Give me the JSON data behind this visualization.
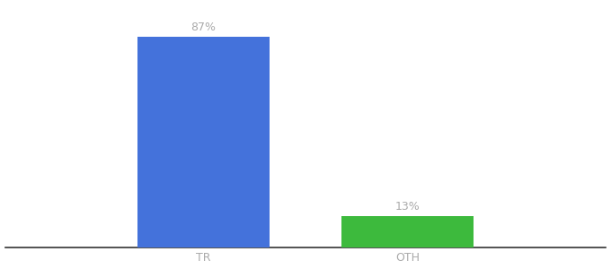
{
  "categories": [
    "TR",
    "OTH"
  ],
  "values": [
    87,
    13
  ],
  "bar_colors": [
    "#4472db",
    "#3dba3d"
  ],
  "labels": [
    "87%",
    "13%"
  ],
  "background_color": "#ffffff",
  "ylim": [
    0,
    100
  ],
  "bar_width": 0.22,
  "figsize": [
    6.8,
    3.0
  ],
  "dpi": 100,
  "label_fontsize": 9,
  "tick_fontsize": 9,
  "label_color": "#aaaaaa",
  "tick_color": "#aaaaaa",
  "x_positions": [
    0.33,
    0.67
  ]
}
